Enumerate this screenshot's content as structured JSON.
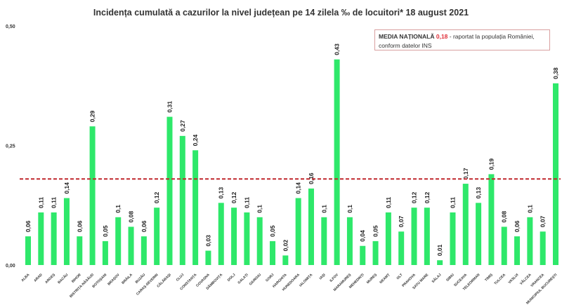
{
  "chart_data": {
    "type": "bar",
    "title": "Incidența cumulată a cazurilor la nivel județean pe 14 zilela ‰ de locuitori*  18 august 2021",
    "xlabel": "",
    "ylabel": "",
    "ylim": [
      0,
      0.5
    ],
    "yticks": [
      "0,00",
      "0,25",
      "0,50"
    ],
    "ytick_values": [
      0,
      0.25,
      0.5
    ],
    "grid": false,
    "bar_color": "#2ee86a",
    "reference_line": {
      "value": 0.18,
      "color": "#c0282d",
      "style": "dashed"
    },
    "categories": [
      "ALBA",
      "ARAD",
      "ARGEȘ",
      "BACĂU",
      "BIHOR",
      "BISTRIȚA-NĂSĂUD",
      "BOTOȘANI",
      "BRAȘOV",
      "BRĂILA",
      "BUZĂU",
      "CARAȘ-SEVERIN",
      "CĂLĂRAȘI",
      "CLUJ",
      "CONSTANȚA",
      "COVASNA",
      "DÂMBOVIȚA",
      "DOLJ",
      "GALAȚI",
      "GIURGIU",
      "GORJ",
      "HARGHITA",
      "HUNEDOARA",
      "IALOMIȚA",
      "IAȘI",
      "ILFOV",
      "MARAMUREȘ",
      "MEHEDINȚI",
      "MUREȘ",
      "NEAMȚ",
      "OLT",
      "PRAHOVA",
      "SATU MARE",
      "SĂLAJ",
      "SIBIU",
      "SUCEAVA",
      "TELEORMAN",
      "TIMIȘ",
      "TULCEA",
      "VASLUI",
      "VÂLCEA",
      "VRANCEA",
      "MUNICIPIUL BUCUREȘTI"
    ],
    "values": [
      0.06,
      0.11,
      0.11,
      0.14,
      0.06,
      0.29,
      0.05,
      0.1,
      0.08,
      0.06,
      0.12,
      0.31,
      0.27,
      0.24,
      0.03,
      0.13,
      0.12,
      0.11,
      0.1,
      0.05,
      0.02,
      0.14,
      0.16,
      0.1,
      0.43,
      0.1,
      0.04,
      0.05,
      0.11,
      0.07,
      0.12,
      0.12,
      0.01,
      0.11,
      0.17,
      0.13,
      0.19,
      0.08,
      0.06,
      0.1,
      0.07,
      0.38
    ],
    "value_labels": [
      "0,06",
      "0,11",
      "0,11",
      "0,14",
      "0,06",
      "0,29",
      "0,05",
      "0,1",
      "0,08",
      "0,06",
      "0,12",
      "0,31",
      "0,27",
      "0,24",
      "0,03",
      "0,13",
      "0,12",
      "0,11",
      "0,1",
      "0,05",
      "0,02",
      "0,14",
      "0,16",
      "0,1",
      "0,43",
      "0,1",
      "0,04",
      "0,05",
      "0,11",
      "0,07",
      "0,12",
      "0,12",
      "0,01",
      "0,11",
      "0,17",
      "0,13",
      "0,19",
      "0,08",
      "0,06",
      "0,1",
      "0,07",
      "0,38"
    ]
  },
  "annotation": {
    "heading": "MEDIA NAȚIONALĂ",
    "value": "0,18",
    "text": " - raportat la populația României,",
    "line2": "conform datelor INS"
  }
}
